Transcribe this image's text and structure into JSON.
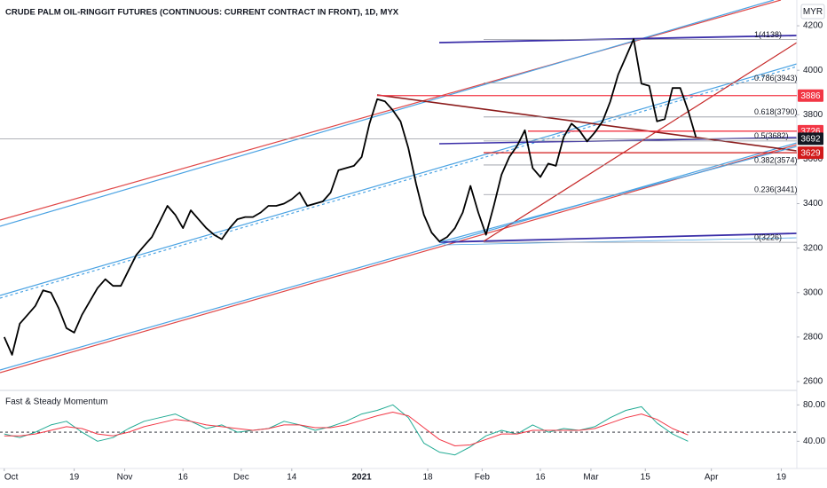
{
  "chart_data": [
    {
      "type": "line",
      "title": "CRUDE PALM OIL-RINGGIT FUTURES (CONTINUOUS: CURRENT CONTRACT IN FRONT), 1D, MYX",
      "currency": "MYR",
      "color": "#000000",
      "x": [
        0,
        2,
        4,
        6,
        8,
        10,
        12,
        14,
        16,
        18,
        20,
        22,
        24,
        26,
        28,
        30,
        32,
        34,
        36,
        38,
        40,
        42,
        44,
        46,
        48,
        50,
        52,
        54,
        56,
        58,
        60,
        62,
        64,
        66,
        68,
        70,
        72,
        74,
        76,
        78,
        80,
        82,
        84,
        86,
        88,
        90,
        92,
        94,
        96,
        98,
        100,
        102,
        104,
        106,
        108,
        110,
        112,
        114,
        116,
        118,
        120,
        122,
        124,
        126,
        128,
        130,
        132,
        134,
        136,
        138,
        140,
        142,
        144,
        146,
        148,
        150,
        152,
        154,
        156,
        158,
        160,
        162,
        164,
        166,
        168,
        170,
        172,
        174,
        176,
        178
      ],
      "values": [
        2800,
        2720,
        2860,
        2900,
        2940,
        3010,
        3000,
        2930,
        2840,
        2820,
        2900,
        2960,
        3020,
        3060,
        3030,
        3030,
        3100,
        3170,
        3210,
        3250,
        3320,
        3390,
        3350,
        3290,
        3370,
        3330,
        3290,
        3260,
        3240,
        3290,
        3330,
        3340,
        3340,
        3360,
        3390,
        3390,
        3400,
        3420,
        3450,
        3390,
        3400,
        3410,
        3450,
        3550,
        3560,
        3570,
        3610,
        3760,
        3870,
        3860,
        3820,
        3770,
        3650,
        3490,
        3350,
        3270,
        3230,
        3250,
        3290,
        3360,
        3480,
        3360,
        3260,
        3390,
        3530,
        3610,
        3660,
        3730,
        3560,
        3520,
        3580,
        3570,
        3700,
        3760,
        3730,
        3680,
        3720,
        3770,
        3860,
        3980,
        4060,
        4140,
        3940,
        3930,
        3770,
        3780,
        3920,
        3920,
        3820,
        3700
      ],
      "xlim": [
        -1.1,
        204
      ],
      "xticks": [
        {
          "value": 0,
          "label": "Oct"
        },
        {
          "value": 18,
          "label": "19"
        },
        {
          "value": 31,
          "label": "Nov"
        },
        {
          "value": 46,
          "label": "16"
        },
        {
          "value": 61,
          "label": "Dec"
        },
        {
          "value": 74,
          "label": "14"
        },
        {
          "value": 92,
          "label": "2021"
        },
        {
          "value": 109,
          "label": "18"
        },
        {
          "value": 123,
          "label": "Feb"
        },
        {
          "value": 138,
          "label": "16"
        },
        {
          "value": 151,
          "label": "Mar"
        },
        {
          "value": 165,
          "label": "15"
        },
        {
          "value": 182,
          "label": "Apr"
        },
        {
          "value": 200,
          "label": "19"
        }
      ],
      "ylim": [
        2560,
        4316
      ],
      "yticks": [
        2600,
        2800,
        3000,
        3200,
        3400,
        3600,
        3800,
        4000,
        4200
      ],
      "fib_levels": [
        {
          "value": 4138,
          "label": "1(4138)"
        },
        {
          "value": 3943,
          "label": "0.786(3943)"
        },
        {
          "value": 3790,
          "label": "0.618(3790)"
        },
        {
          "value": 3682,
          "label": "0.5(3682)"
        },
        {
          "value": 3574,
          "label": "0.382(3574)"
        },
        {
          "value": 3441,
          "label": "0.236(3441)"
        },
        {
          "value": 3226,
          "label": "0(3226)"
        }
      ],
      "price_labels": [
        {
          "value": 3886,
          "color": "#f23645"
        },
        {
          "value": 3726,
          "color": "#f23645"
        },
        {
          "value": 3692,
          "color": "#131722"
        },
        {
          "value": 3629,
          "color": "#d11a1a"
        }
      ]
    },
    {
      "type": "line",
      "title": "Fast & Steady Momentum",
      "x": [
        0,
        4,
        8,
        12,
        16,
        20,
        24,
        28,
        32,
        36,
        40,
        44,
        48,
        52,
        56,
        60,
        64,
        68,
        72,
        76,
        80,
        84,
        88,
        92,
        96,
        100,
        104,
        108,
        112,
        116,
        120,
        124,
        128,
        132,
        136,
        140,
        144,
        148,
        152,
        156,
        160,
        164,
        168,
        172,
        176
      ],
      "series": [
        {
          "color": "#22ab94",
          "values": [
            48,
            44,
            50,
            58,
            62,
            50,
            40,
            44,
            54,
            62,
            66,
            70,
            62,
            54,
            58,
            50,
            52,
            54,
            62,
            58,
            52,
            56,
            62,
            70,
            74,
            80,
            66,
            38,
            28,
            25,
            34,
            46,
            52,
            48,
            58,
            50,
            54,
            52,
            56,
            66,
            74,
            78,
            60,
            48,
            40
          ]
        },
        {
          "color": "#f23645",
          "values": [
            46,
            46,
            48,
            52,
            56,
            54,
            48,
            46,
            50,
            56,
            60,
            64,
            62,
            58,
            56,
            54,
            52,
            54,
            58,
            58,
            55,
            55,
            58,
            63,
            68,
            72,
            68,
            55,
            42,
            35,
            36,
            42,
            48,
            48,
            52,
            52,
            52,
            52,
            54,
            60,
            66,
            70,
            64,
            54,
            47
          ]
        }
      ],
      "ylim": [
        13,
        94
      ],
      "yticks": [
        {
          "value": 40,
          "label": "40.00"
        },
        {
          "value": 80,
          "label": "80.00"
        }
      ],
      "hline": 50
    }
  ]
}
